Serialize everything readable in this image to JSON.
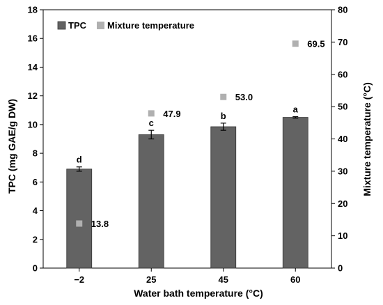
{
  "chart_data": {
    "type": "bar",
    "xlabel": "Water bath temperature (°C)",
    "ylabel": "TPC (mg GAE/g DW)",
    "y2label": "Mixture temperature (°C)",
    "categories": [
      "−2",
      "25",
      "45",
      "60"
    ],
    "ylim": [
      0,
      18
    ],
    "y2lim": [
      0,
      80
    ],
    "yticks": [
      "0",
      "2",
      "4",
      "6",
      "8",
      "10",
      "12",
      "14",
      "16",
      "18"
    ],
    "y2ticks": [
      "0",
      "10",
      "20",
      "30",
      "40",
      "50",
      "60",
      "70",
      "80"
    ],
    "legend_position": "top-left",
    "series": [
      {
        "name": "TPC",
        "kind": "bar",
        "axis": "left",
        "color": "#636363",
        "values": [
          6.9,
          9.3,
          9.85,
          10.5
        ],
        "errors": [
          0.15,
          0.3,
          0.25,
          0.05
        ],
        "letters": [
          "d",
          "c",
          "b",
          "a"
        ]
      },
      {
        "name": "Mixture temperature",
        "kind": "scatter",
        "axis": "right",
        "color": "#b0b0b0",
        "values": [
          13.8,
          47.9,
          53.0,
          69.5
        ],
        "labels": [
          "13.8",
          "47.9",
          "53.0",
          "69.5"
        ]
      }
    ]
  }
}
